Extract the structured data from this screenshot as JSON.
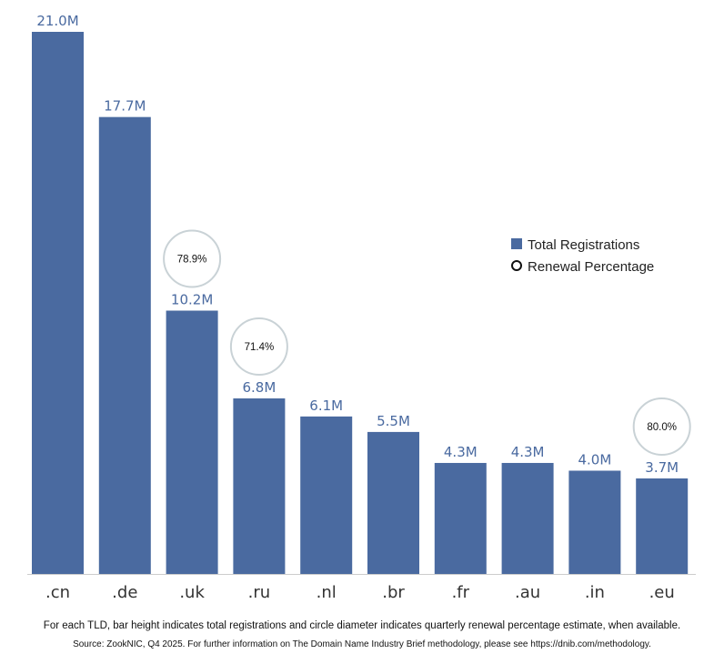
{
  "chart_data": {
    "type": "bar",
    "categories": [
      ".cn",
      ".de",
      ".uk",
      ".ru",
      ".nl",
      ".br",
      ".fr",
      ".au",
      ".in",
      ".eu"
    ],
    "series": [
      {
        "name": "Total Registrations",
        "unit": "M",
        "values": [
          21.0,
          17.7,
          10.2,
          6.8,
          6.1,
          5.5,
          4.3,
          4.3,
          4.0,
          3.7
        ],
        "labels": [
          "21.0M",
          "17.7M",
          "10.2M",
          "6.8M",
          "6.1M",
          "5.5M",
          "4.3M",
          "4.3M",
          "4.0M",
          "3.7M"
        ]
      },
      {
        "name": "Renewal Percentage",
        "unit": "%",
        "values": [
          null,
          null,
          78.9,
          71.4,
          null,
          null,
          null,
          null,
          null,
          80.0
        ],
        "labels": [
          "",
          "",
          "78.9%",
          "71.4%",
          "",
          "",
          "",
          "",
          "",
          "80.0%"
        ]
      }
    ],
    "ylim": [
      0,
      21.0
    ],
    "grid": false,
    "legend": "right"
  },
  "legend": {
    "registrations": "Total Registrations",
    "renewal": "Renewal Percentage"
  },
  "footnote": {
    "line1": "For each TLD, bar height indicates total registrations and circle diameter indicates quarterly renewal percentage estimate, when available.",
    "line2": "Source: ZookNIC, Q4 2025. For further information on The Domain Name Industry Brief methodology, please see https://dnib.com/methodology."
  },
  "colors": {
    "bar": "#4a6aa0",
    "circle_stroke": "#c9d2d6",
    "axis": "#cccccc"
  }
}
